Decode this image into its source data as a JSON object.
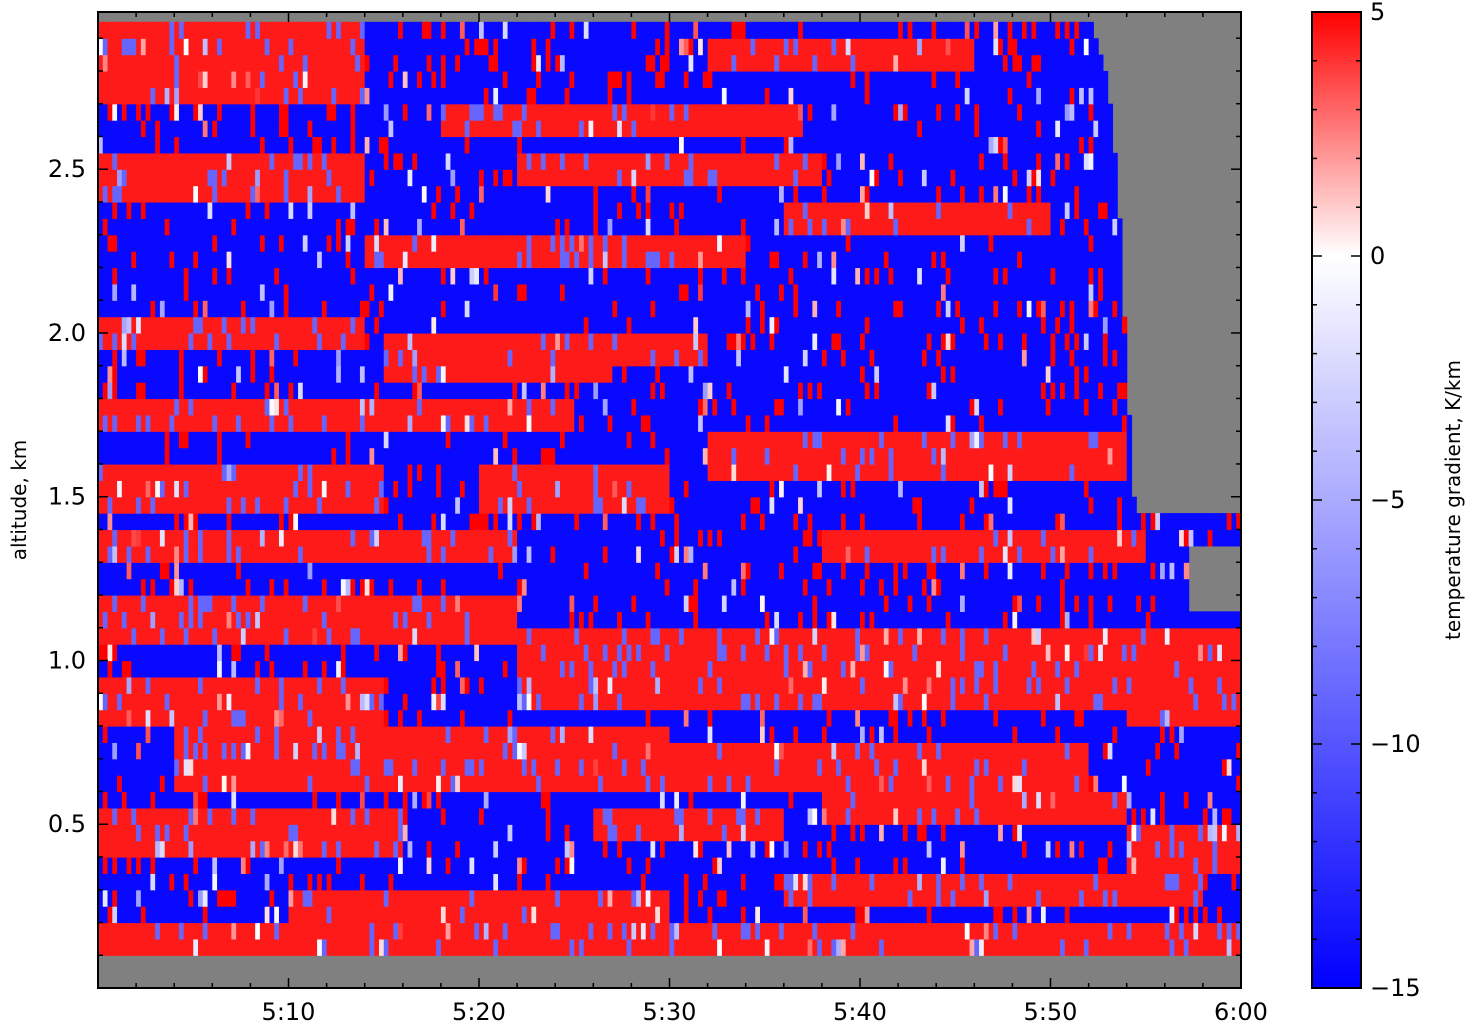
{
  "chart_data": {
    "type": "heatmap",
    "title": "",
    "xlabel": "",
    "ylabel": "altitude, km",
    "colorbar_label": "temperature gradient, K/km",
    "x_ticks": [
      "5:10",
      "5:20",
      "5:30",
      "5:40",
      "5:50",
      "6:00"
    ],
    "x_tick_minutes": [
      10,
      20,
      30,
      40,
      50,
      60
    ],
    "xlim_minutes": [
      0,
      60
    ],
    "y_ticks": [
      "0.5",
      "1.0",
      "1.5",
      "2.0",
      "2.5"
    ],
    "y_tick_values": [
      0.5,
      1.0,
      1.5,
      2.0,
      2.5
    ],
    "ylim": [
      0.0,
      2.98
    ],
    "data_altitude_range": [
      0.1,
      2.95
    ],
    "colorbar_ticks": [
      "5",
      "0",
      "−5",
      "−10",
      "−15"
    ],
    "colorbar_tick_values": [
      5,
      0,
      -5,
      -10,
      -15
    ],
    "colorbar_range": [
      -15,
      5
    ],
    "colormap": [
      "#0000ff",
      "#ffffff",
      "#ff0000"
    ],
    "missing_color": "#808080",
    "grid": false,
    "grid_time_step_min": 0.25,
    "grid_altitude_step_km": 0.05,
    "valid_top_profile_km": [
      [
        0,
        2.95
      ],
      [
        52.2,
        2.95
      ],
      [
        52.5,
        2.88
      ],
      [
        53.0,
        2.75
      ],
      [
        53.6,
        2.4
      ],
      [
        54.0,
        1.9
      ],
      [
        54.4,
        1.45
      ],
      [
        54.7,
        1.43
      ],
      [
        60,
        1.43
      ]
    ],
    "missing_box": {
      "minutes": [
        57.2,
        60
      ],
      "altitude_km": [
        1.15,
        1.36
      ]
    },
    "data_bands": [
      {
        "minutes": [
          0,
          14
        ],
        "altitude_km": [
          2.7,
          2.95
        ],
        "value": 4.5
      },
      {
        "minutes": [
          14,
          26
        ],
        "altitude_km": [
          2.7,
          2.95
        ],
        "value": -14.5
      },
      {
        "minutes": [
          32,
          46
        ],
        "altitude_km": [
          2.78,
          2.9
        ],
        "value": 4.5
      },
      {
        "minutes": [
          0,
          14
        ],
        "altitude_km": [
          2.4,
          2.55
        ],
        "value": 4.5
      },
      {
        "minutes": [
          18,
          37
        ],
        "altitude_km": [
          2.58,
          2.7
        ],
        "value": 4.5
      },
      {
        "minutes": [
          22,
          38
        ],
        "altitude_km": [
          2.45,
          2.55
        ],
        "value": 4.5
      },
      {
        "minutes": [
          36,
          50
        ],
        "altitude_km": [
          2.28,
          2.38
        ],
        "value": 4.5
      },
      {
        "minutes": [
          14,
          34
        ],
        "altitude_km": [
          2.18,
          2.28
        ],
        "value": 4.5
      },
      {
        "minutes": [
          0,
          14
        ],
        "altitude_km": [
          1.95,
          2.05
        ],
        "value": 4.5
      },
      {
        "minutes": [
          15,
          27
        ],
        "altitude_km": [
          1.85,
          2.0
        ],
        "value": 4.5
      },
      {
        "minutes": [
          25,
          32
        ],
        "altitude_km": [
          1.9,
          1.98
        ],
        "value": 4.5
      },
      {
        "minutes": [
          0,
          25
        ],
        "altitude_km": [
          1.7,
          1.8
        ],
        "value": 4.5
      },
      {
        "minutes": [
          32,
          54
        ],
        "altitude_km": [
          1.55,
          1.72
        ],
        "value": 4.5
      },
      {
        "minutes": [
          0,
          15
        ],
        "altitude_km": [
          1.45,
          1.6
        ],
        "value": 4.5
      },
      {
        "minutes": [
          20,
          30
        ],
        "altitude_km": [
          1.45,
          1.58
        ],
        "value": 4.5
      },
      {
        "minutes": [
          0,
          22
        ],
        "altitude_km": [
          1.3,
          1.42
        ],
        "value": 4.5
      },
      {
        "minutes": [
          38,
          55
        ],
        "altitude_km": [
          1.3,
          1.42
        ],
        "value": 4.5
      },
      {
        "minutes": [
          0,
          22
        ],
        "altitude_km": [
          1.05,
          1.2
        ],
        "value": 4.5
      },
      {
        "minutes": [
          22,
          55
        ],
        "altitude_km": [
          0.85,
          1.1
        ],
        "value": 4.5
      },
      {
        "minutes": [
          0,
          15
        ],
        "altitude_km": [
          0.8,
          0.97
        ],
        "value": 4.5
      },
      {
        "minutes": [
          54,
          60
        ],
        "altitude_km": [
          0.8,
          1.1
        ],
        "value": 4.5
      },
      {
        "minutes": [
          4,
          30
        ],
        "altitude_km": [
          0.6,
          0.78
        ],
        "value": 4.5
      },
      {
        "minutes": [
          30,
          52
        ],
        "altitude_km": [
          0.62,
          0.74
        ],
        "value": 4.5
      },
      {
        "minutes": [
          0,
          16
        ],
        "altitude_km": [
          0.38,
          0.55
        ],
        "value": 4.5
      },
      {
        "minutes": [
          26,
          36
        ],
        "altitude_km": [
          0.45,
          0.55
        ],
        "value": 4.5
      },
      {
        "minutes": [
          38,
          54
        ],
        "altitude_km": [
          0.48,
          0.58
        ],
        "value": 4.5
      },
      {
        "minutes": [
          54,
          60
        ],
        "altitude_km": [
          0.36,
          0.5
        ],
        "value": 4.5
      },
      {
        "minutes": [
          0,
          60
        ],
        "altitude_km": [
          0.1,
          0.2
        ],
        "value": 4.5
      },
      {
        "minutes": [
          10,
          30
        ],
        "altitude_km": [
          0.22,
          0.3
        ],
        "value": 4.5
      },
      {
        "minutes": [
          36,
          58
        ],
        "altitude_km": [
          0.26,
          0.34
        ],
        "value": 4.5
      }
    ]
  }
}
